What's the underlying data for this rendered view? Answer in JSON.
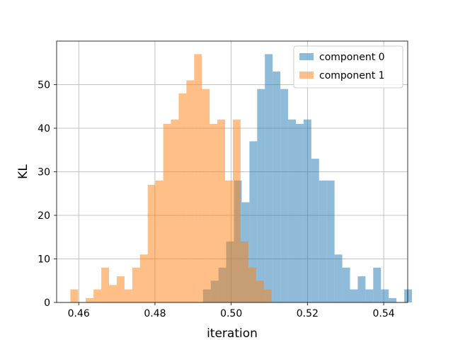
{
  "chart_data": {
    "type": "bar",
    "subtype": "overlapping-histogram",
    "title": "",
    "xlabel": "iteration",
    "ylabel": "KL",
    "xlim": [
      0.4542,
      0.5463
    ],
    "ylim": [
      0,
      60
    ],
    "xticks": [
      0.46,
      0.48,
      0.5,
      0.52,
      0.54
    ],
    "xtick_labels": [
      "0.46",
      "0.48",
      "0.50",
      "0.52",
      "0.54"
    ],
    "yticks": [
      0,
      10,
      20,
      30,
      40,
      50
    ],
    "ytick_labels": [
      "0",
      "10",
      "20",
      "30",
      "40",
      "50"
    ],
    "grid": true,
    "legend_position": "upper right",
    "bar_alpha": 0.5,
    "series": [
      {
        "name": "component 0",
        "color": "#1f77b4",
        "bin_start": 0.4926,
        "bin_width": 0.00203,
        "counts": [
          3,
          5,
          8,
          14,
          28,
          23,
          37,
          49,
          57,
          53,
          49,
          42,
          41,
          42,
          33,
          28,
          28,
          11,
          8,
          3,
          6,
          3,
          8,
          3,
          1,
          0,
          3
        ]
      },
      {
        "name": "component 1",
        "color": "#ff7f0e",
        "bin_start": 0.4578,
        "bin_width": 0.00203,
        "counts": [
          3,
          0,
          1,
          3,
          8,
          4,
          6,
          3,
          8,
          11,
          27,
          28,
          41,
          42,
          48,
          51,
          57,
          49,
          41,
          42,
          28,
          42,
          14,
          8,
          5,
          3
        ]
      }
    ]
  }
}
